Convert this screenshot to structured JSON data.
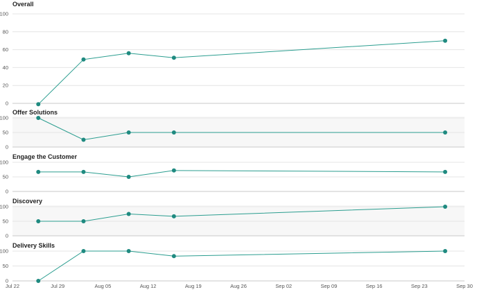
{
  "chart_data": {
    "type": "line",
    "colors": {
      "series": "#2a9d8f",
      "marker": "#1f8a80",
      "band": "#f7f7f7",
      "grid": "#e4e4e4"
    },
    "x_axis": {
      "type": "date",
      "range": [
        "2019-07-22",
        "2019-09-30"
      ],
      "tick_labels": [
        "Jul 22",
        "Jul 29",
        "Aug 05",
        "Aug 12",
        "Aug 19",
        "Aug 26",
        "Sep 02",
        "Sep 09",
        "Sep 16",
        "Sep 23",
        "Sep 30"
      ],
      "tick_dates": [
        "2019-07-22",
        "2019-07-29",
        "2019-08-05",
        "2019-08-12",
        "2019-08-19",
        "2019-08-26",
        "2019-09-02",
        "2019-09-09",
        "2019-09-16",
        "2019-09-23",
        "2019-09-30"
      ]
    },
    "grid": true,
    "panels": [
      {
        "title": "Overall",
        "ylim": [
          0,
          100
        ],
        "yticks": [
          0,
          20,
          40,
          60,
          80,
          100
        ],
        "banded": false,
        "points": [
          {
            "x": "2019-07-26",
            "y": -1
          },
          {
            "x": "2019-08-02",
            "y": 49
          },
          {
            "x": "2019-08-09",
            "y": 56
          },
          {
            "x": "2019-08-16",
            "y": 51
          },
          {
            "x": "2019-09-27",
            "y": 70
          }
        ]
      },
      {
        "title": "Offer Solutions",
        "ylim": [
          0,
          100
        ],
        "yticks": [
          0,
          50,
          100
        ],
        "banded": true,
        "points": [
          {
            "x": "2019-07-26",
            "y": 100
          },
          {
            "x": "2019-08-02",
            "y": 25
          },
          {
            "x": "2019-08-09",
            "y": 50
          },
          {
            "x": "2019-08-16",
            "y": 50
          },
          {
            "x": "2019-09-27",
            "y": 50
          }
        ]
      },
      {
        "title": "Engage the Customer",
        "ylim": [
          0,
          100
        ],
        "yticks": [
          0,
          50,
          100
        ],
        "banded": false,
        "points": [
          {
            "x": "2019-07-26",
            "y": 67
          },
          {
            "x": "2019-08-02",
            "y": 67
          },
          {
            "x": "2019-08-09",
            "y": 50
          },
          {
            "x": "2019-08-16",
            "y": 72
          },
          {
            "x": "2019-09-27",
            "y": 67
          }
        ]
      },
      {
        "title": "Discovery",
        "ylim": [
          0,
          100
        ],
        "yticks": [
          0,
          50,
          100
        ],
        "banded": true,
        "points": [
          {
            "x": "2019-07-26",
            "y": 50
          },
          {
            "x": "2019-08-02",
            "y": 50
          },
          {
            "x": "2019-08-09",
            "y": 75
          },
          {
            "x": "2019-08-16",
            "y": 67
          },
          {
            "x": "2019-09-27",
            "y": 100
          }
        ]
      },
      {
        "title": "Delivery Skills",
        "ylim": [
          0,
          100
        ],
        "yticks": [
          0,
          50,
          100
        ],
        "banded": false,
        "points": [
          {
            "x": "2019-07-26",
            "y": 0
          },
          {
            "x": "2019-08-02",
            "y": 100
          },
          {
            "x": "2019-08-09",
            "y": 100
          },
          {
            "x": "2019-08-16",
            "y": 83
          },
          {
            "x": "2019-09-27",
            "y": 100
          }
        ]
      }
    ]
  }
}
